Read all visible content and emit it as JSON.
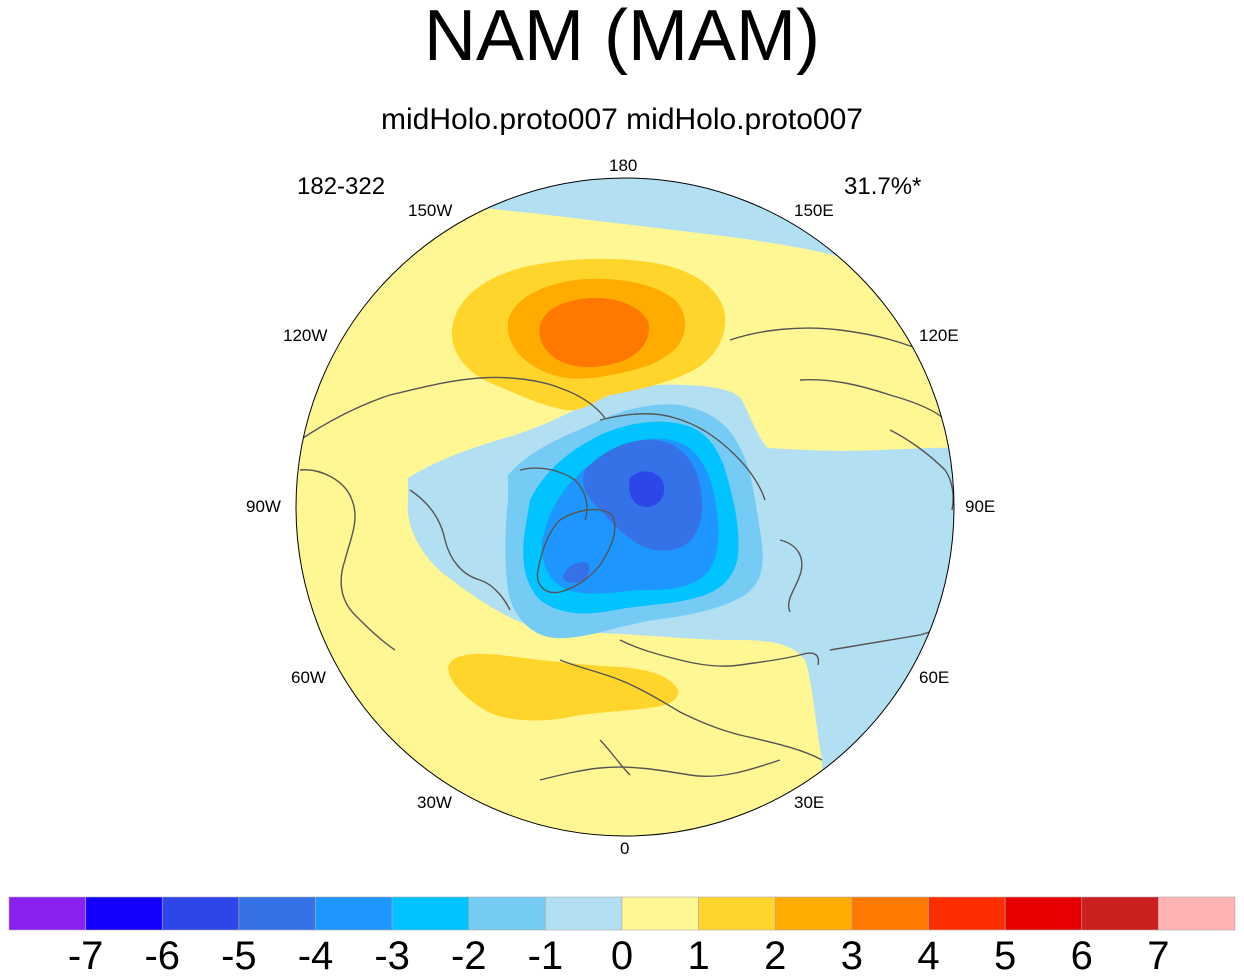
{
  "title": "NAM (MAM)",
  "subtitle": "midHolo.proto007  midHolo.proto007",
  "left_annotation": "182-322",
  "right_annotation": "31.7%*",
  "longitude_labels": [
    "180",
    "150E",
    "120E",
    "90E",
    "60E",
    "30E",
    "0",
    "30W",
    "60W",
    "90W",
    "120W",
    "150W"
  ],
  "colorbar": {
    "colors": [
      "#8a21f0",
      "#1500ff",
      "#2c46e8",
      "#3572e8",
      "#1e96ff",
      "#00c3ff",
      "#76cbf5",
      "#b3dff2",
      "#fff794",
      "#ffd52b",
      "#ffab00",
      "#ff7800",
      "#ff2e00",
      "#e80000",
      "#cc1f1f",
      "#ffb3b3"
    ],
    "tick_labels": [
      "-7",
      "-6",
      "-5",
      "-4",
      "-3",
      "-2",
      "-1",
      "0",
      "1",
      "2",
      "3",
      "4",
      "5",
      "6",
      "7"
    ]
  },
  "map_colors": {
    "land_ocean_pos_0_1": "#fff794",
    "neg_0_1": "#b3dff2",
    "neg_1_2": "#76cbf5",
    "neg_2_3": "#00c3ff",
    "neg_3_4": "#1e96ff",
    "neg_4_5": "#3572e8",
    "neg_5_6": "#2c46e8",
    "pos_1_2": "#ffd52b",
    "pos_2_3": "#ffab00",
    "pos_3_4": "#ff7800",
    "coastline": "#555555"
  }
}
